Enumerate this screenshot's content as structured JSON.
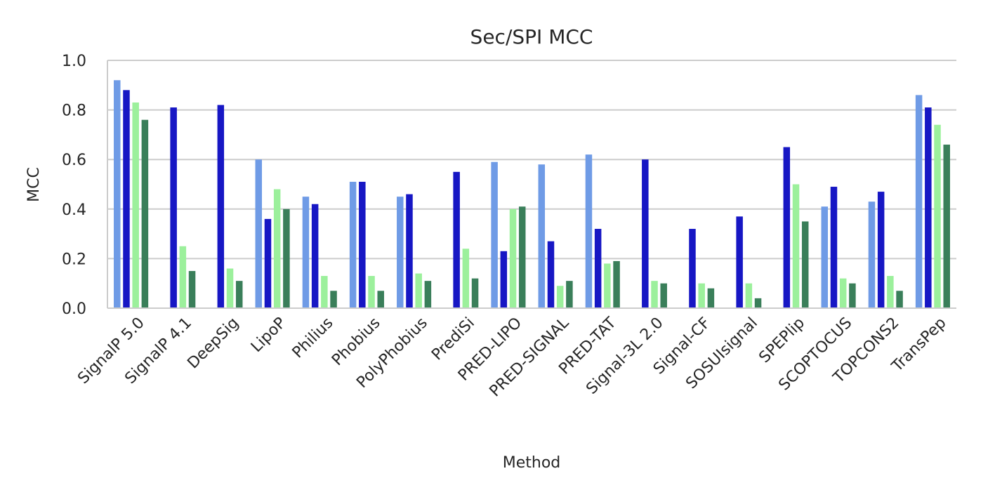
{
  "chart_data": {
    "type": "bar",
    "title": "Sec/SPI MCC",
    "xlabel": "Method",
    "ylabel": "MCC",
    "ylim": [
      0,
      1.0
    ],
    "yticks": [
      "0.0",
      "0.2",
      "0.4",
      "0.6",
      "0.8",
      "1.0"
    ],
    "grid": "horizontal",
    "categories": [
      "SignalP 5.0",
      "SignalP 4.1",
      "DeepSig",
      "LipoP",
      "Philius",
      "Phobius",
      "PolyPhobius",
      "PrediSi",
      "PRED-LIPO",
      "PRED-SIGNAL",
      "PRED-TAT",
      "Signal-3L 2.0",
      "Signal-CF",
      "SOSUIsignal",
      "SPEPlip",
      "SCOPTOCUS",
      "TOPCONS2",
      "TransPep"
    ],
    "series": [
      {
        "color": "#6f9be6",
        "values": [
          0.92,
          0,
          0,
          0.6,
          0.45,
          0.51,
          0.45,
          0,
          0.59,
          0.58,
          0.62,
          0,
          0,
          0,
          0,
          0.41,
          0.43,
          0.86
        ]
      },
      {
        "color": "#1717c4",
        "values": [
          0.88,
          0.81,
          0.82,
          0.36,
          0.42,
          0.51,
          0.46,
          0.55,
          0.23,
          0.27,
          0.32,
          0.6,
          0.32,
          0.37,
          0.65,
          0.49,
          0.47,
          0.81
        ]
      },
      {
        "color": "#9cf09c",
        "values": [
          0.83,
          0.25,
          0.16,
          0.48,
          0.13,
          0.13,
          0.14,
          0.24,
          0.4,
          0.09,
          0.18,
          0.11,
          0.1,
          0.1,
          0.5,
          0.12,
          0.13,
          0.74
        ]
      },
      {
        "color": "#3a7f5a",
        "values": [
          0.76,
          0.15,
          0.11,
          0.4,
          0.07,
          0.07,
          0.11,
          0.12,
          0.41,
          0.11,
          0.19,
          0.1,
          0.08,
          0.04,
          0.35,
          0.1,
          0.07,
          0.66
        ]
      }
    ]
  }
}
